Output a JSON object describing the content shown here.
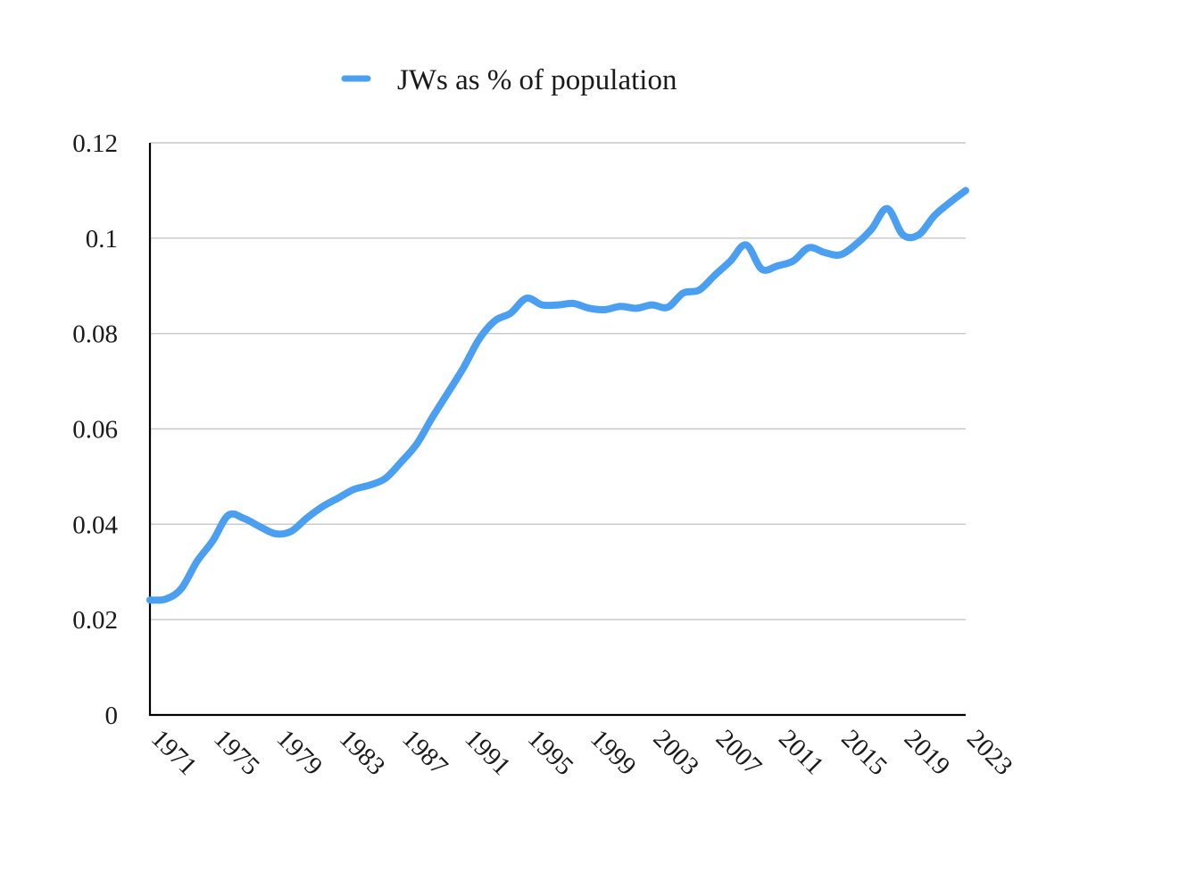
{
  "chart_data": {
    "type": "line",
    "title": "",
    "xlabel": "",
    "ylabel": "",
    "ylim": [
      0,
      0.12
    ],
    "xlim": [
      1971,
      2023
    ],
    "grid": true,
    "legend_position": "top-center",
    "y_tick_labels": [
      "0",
      "0.02",
      "0.04",
      "0.06",
      "0.08",
      "0.1",
      "0.12"
    ],
    "y_ticks": [
      0,
      0.02,
      0.04,
      0.06,
      0.08,
      0.1,
      0.12
    ],
    "x_tick_labels": [
      "1971",
      "1975",
      "1979",
      "1983",
      "1987",
      "1991",
      "1995",
      "1999",
      "2003",
      "2007",
      "2011",
      "2015",
      "2019",
      "2023"
    ],
    "x_ticks": [
      1971,
      1975,
      1979,
      1983,
      1987,
      1991,
      1995,
      1999,
      2003,
      2007,
      2011,
      2015,
      2019,
      2023
    ],
    "series": [
      {
        "name": "JWs as % of population",
        "color": "#4b9ff0",
        "x": [
          1971,
          1972,
          1973,
          1974,
          1975,
          1976,
          1977,
          1978,
          1979,
          1980,
          1981,
          1982,
          1983,
          1984,
          1985,
          1986,
          1987,
          1988,
          1989,
          1990,
          1991,
          1992,
          1993,
          1994,
          1995,
          1996,
          1997,
          1998,
          1999,
          2000,
          2001,
          2002,
          2003,
          2004,
          2005,
          2006,
          2007,
          2008,
          2009,
          2010,
          2011,
          2012,
          2013,
          2014,
          2015,
          2016,
          2017,
          2018,
          2019,
          2020,
          2021,
          2022,
          2023
        ],
        "values": [
          0.0241,
          0.0243,
          0.0265,
          0.0322,
          0.0365,
          0.0419,
          0.0412,
          0.0395,
          0.038,
          0.0385,
          0.0413,
          0.0437,
          0.0455,
          0.0473,
          0.0482,
          0.0496,
          0.053,
          0.0568,
          0.0624,
          0.0676,
          0.0729,
          0.0789,
          0.0827,
          0.0843,
          0.0874,
          0.086,
          0.086,
          0.0863,
          0.0853,
          0.085,
          0.0857,
          0.0853,
          0.086,
          0.0855,
          0.0885,
          0.0891,
          0.0922,
          0.0952,
          0.0986,
          0.0935,
          0.0942,
          0.0952,
          0.098,
          0.097,
          0.0965,
          0.0987,
          0.1019,
          0.1062,
          0.1007,
          0.1007,
          0.1047,
          0.1075,
          0.11
        ]
      }
    ]
  }
}
